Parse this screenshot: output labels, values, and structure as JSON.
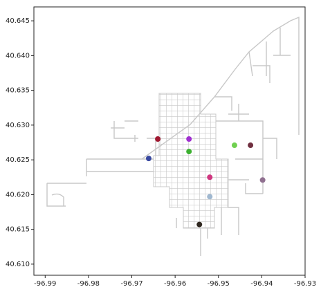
{
  "chart_data": {
    "type": "scatter",
    "x": [
      -96.964,
      -96.9568,
      -96.9568,
      -96.9463,
      -96.9426,
      -96.9661,
      -96.952,
      -96.9398,
      -96.952,
      -96.9544
    ],
    "values": [
      40.628,
      40.628,
      40.6262,
      40.6271,
      40.6271,
      40.6252,
      40.6225,
      40.6221,
      40.6197,
      40.6157
    ],
    "colors": [
      "#a01830",
      "#a030d0",
      "#3cb030",
      "#70d050",
      "#703040",
      "#3848a0",
      "#d03880",
      "#907090",
      "#a0b8d0",
      "#302820"
    ],
    "xlim": [
      -96.9926,
      -96.93
    ],
    "ylim": [
      40.6084,
      40.647
    ],
    "xticks": [
      -96.99,
      -96.98,
      -96.97,
      -96.96,
      -96.95,
      -96.94,
      -96.93
    ],
    "yticks": [
      {
        "value": 40.61,
        "label": "40.610"
      },
      40.615,
      {
        "value": 40.62,
        "label": "40.620"
      },
      40.625,
      {
        "value": 40.63,
        "label": "40.630"
      },
      40.635,
      {
        "value": 40.64,
        "label": "40.640"
      },
      40.645
    ]
  }
}
